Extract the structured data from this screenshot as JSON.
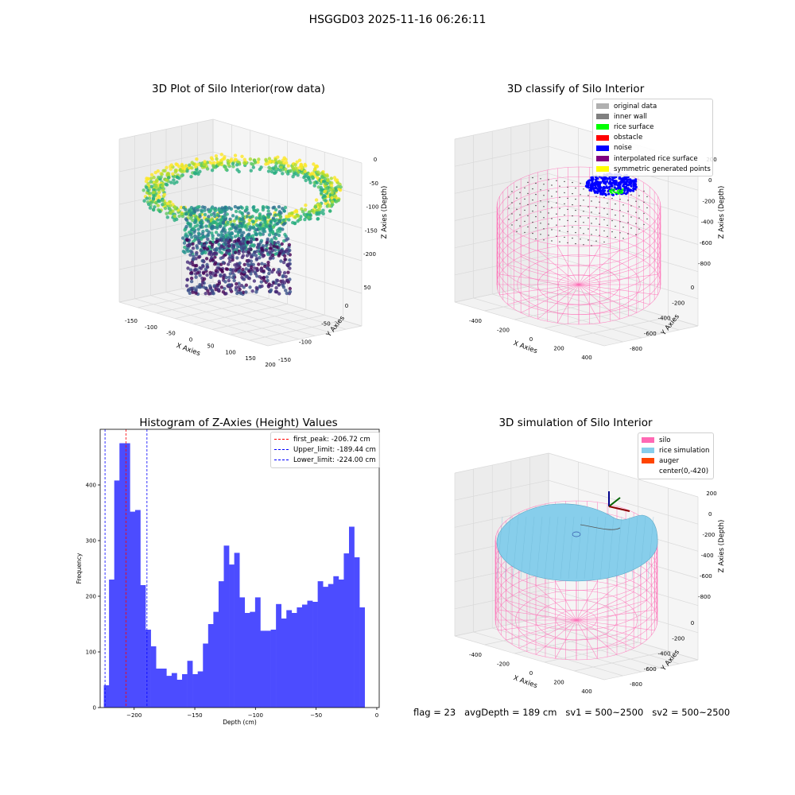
{
  "suptitle": "HSGGD03 2025-11-16 06:26:11",
  "footer_text": "flag = 23   avgDepth = 189 cm   sv1 = 500~2500   sv2 = 500~2500",
  "panels": {
    "raw": {
      "title": "3D Plot of Silo Interior(row data)",
      "xlabel": "X Axies",
      "ylabel": "Y Axies",
      "zlabel": "Z Axies (Depth)",
      "x_ticks": [
        "-150",
        "-100",
        "-50",
        "0",
        "50",
        "100",
        "150",
        "200"
      ],
      "y_ticks": [
        "-150",
        "-100",
        "-50",
        "0",
        "50"
      ],
      "z_ticks": [
        "0",
        "-50",
        "-100",
        "-150",
        "-200"
      ]
    },
    "classify": {
      "title": "3D classify of Silo Interior",
      "xlabel": "X Axies",
      "ylabel": "Y Axies",
      "zlabel": "Z Axies (Depth)",
      "x_ticks": [
        "-400",
        "-200",
        "0",
        "200",
        "400"
      ],
      "y_ticks": [
        "-800",
        "-600",
        "-400",
        "-200",
        "0"
      ],
      "z_ticks": [
        "200",
        "0",
        "-200",
        "-400",
        "-600",
        "-800"
      ],
      "legend": [
        {
          "label": "original data",
          "color": "#b0b0b0"
        },
        {
          "label": "inner wall",
          "color": "#808080"
        },
        {
          "label": "rice surface",
          "color": "#00ff00"
        },
        {
          "label": "obstacle",
          "color": "#ff0000"
        },
        {
          "label": "noise",
          "color": "#0000ff"
        },
        {
          "label": "interpolated rice surface",
          "color": "#800080"
        },
        {
          "label": "symmetric generated points",
          "color": "#ffff00"
        }
      ]
    },
    "histogram": {
      "title": "Histogram of Z-Axies (Height) Values",
      "xlabel": "Depth (cm)",
      "ylabel": "Frequency",
      "legend": [
        {
          "label": "first_peak: -206.72 cm",
          "color": "#ff0000"
        },
        {
          "label": "Upper_limit: -189.44 cm",
          "color": "#0000ff"
        },
        {
          "label": "Lower_limit: -224.00 cm",
          "color": "#0000ff"
        }
      ]
    },
    "simulation": {
      "title": "3D simulation of Silo Interior",
      "xlabel": "X Axies",
      "ylabel": "Y Axies",
      "zlabel": "Z Axies (Depth)",
      "x_ticks": [
        "-400",
        "-200",
        "0",
        "200",
        "400"
      ],
      "y_ticks": [
        "-800",
        "-600",
        "-400",
        "-200",
        "0"
      ],
      "z_ticks": [
        "200",
        "0",
        "-200",
        "-400",
        "-600",
        "-800"
      ],
      "legend": [
        {
          "label": "silo",
          "color": "#ff69b4"
        },
        {
          "label": "rice simulation",
          "color": "#87ceeb"
        },
        {
          "label": "auger",
          "color": "#ff4500"
        },
        {
          "label": "center(0,-420)",
          "color": "none"
        }
      ]
    }
  },
  "chart_data": {
    "type": "bar",
    "title": "Histogram of Z-Axies (Height) Values",
    "xlabel": "Depth (cm)",
    "ylabel": "Frequency",
    "bin_start": -225,
    "bin_width": 4.3,
    "values": [
      40,
      230,
      408,
      475,
      475,
      352,
      355,
      220,
      140,
      110,
      70,
      70,
      57,
      62,
      50,
      60,
      84,
      60,
      65,
      115,
      150,
      172,
      227,
      291,
      257,
      278,
      198,
      170,
      172,
      198,
      138,
      138,
      140,
      186,
      160,
      175,
      170,
      180,
      185,
      192,
      190,
      227,
      217,
      222,
      236,
      230,
      277,
      325,
      270,
      180
    ],
    "xlim": [
      -228,
      2
    ],
    "ylim": [
      0,
      500
    ],
    "x_ticks": [
      -200,
      -150,
      -100,
      -50,
      0
    ],
    "y_ticks": [
      0,
      100,
      200,
      300,
      400
    ],
    "lines": [
      {
        "name": "first_peak: -206.72 cm",
        "x": -206.72,
        "color": "#ff0000"
      },
      {
        "name": "Upper_limit: -189.44 cm",
        "x": -189.44,
        "color": "#0000ff"
      },
      {
        "name": "Lower_limit: -224.00 cm",
        "x": -224.0,
        "color": "#0000ff"
      }
    ],
    "bar_color": "#4c4cff",
    "legend_position": "top-right"
  }
}
